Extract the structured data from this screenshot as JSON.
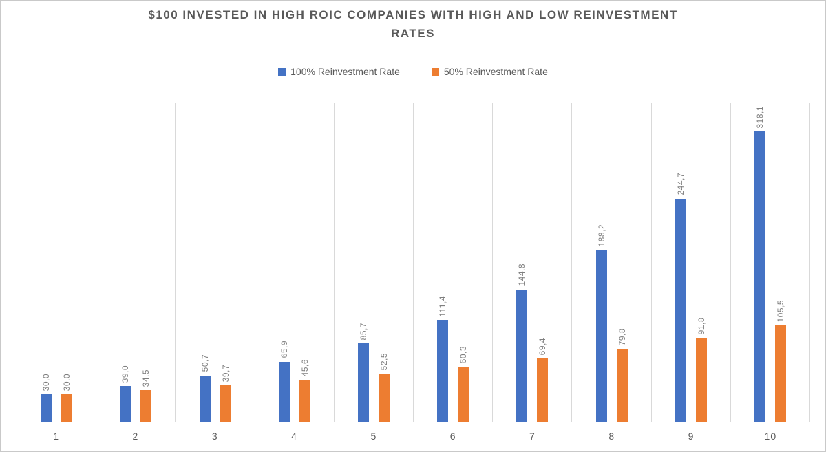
{
  "chart_data": {
    "type": "bar",
    "title": "$100 INVESTED IN HIGH ROIC COMPANIES WITH HIGH AND LOW REINVESTMENT RATES",
    "categories": [
      "1",
      "2",
      "3",
      "4",
      "5",
      "6",
      "7",
      "8",
      "9",
      "10"
    ],
    "xlabel": "",
    "ylabel": "",
    "ylim": [
      0,
      350
    ],
    "grid": "vertical category boundary gridlines only, no horizontal gridlines, no y-axis labels",
    "legend_position": "top-center",
    "value_format": "comma decimal separator, one decimal place, labels rotated 90 degrees",
    "series": [
      {
        "name": "100% Reinvestment Rate",
        "color": "#4472C4",
        "values": [
          30.0,
          39.0,
          50.7,
          65.9,
          85.7,
          111.4,
          144.8,
          188.2,
          244.7,
          318.1
        ],
        "labels": [
          "30,0",
          "39,0",
          "50,7",
          "65,9",
          "85,7",
          "111,4",
          "144,8",
          "188,2",
          "244,7",
          "318,1"
        ]
      },
      {
        "name": "50% Reinvestment Rate",
        "color": "#ED7D31",
        "values": [
          30.0,
          34.5,
          39.7,
          45.6,
          52.5,
          60.3,
          69.4,
          79.8,
          91.8,
          105.5
        ],
        "labels": [
          "30,0",
          "34,5",
          "39,7",
          "45,6",
          "52,5",
          "60,3",
          "69,4",
          "79,8",
          "91,8",
          "105,5"
        ]
      }
    ],
    "colors": {
      "series_blue": "#4472C4",
      "series_orange": "#ED7D31",
      "gridline": "#D9D9D9",
      "title_text": "#595959",
      "axis_text": "#595959",
      "data_label_text": "#7F7F7F",
      "frame_border": "#C9C9C9"
    }
  }
}
